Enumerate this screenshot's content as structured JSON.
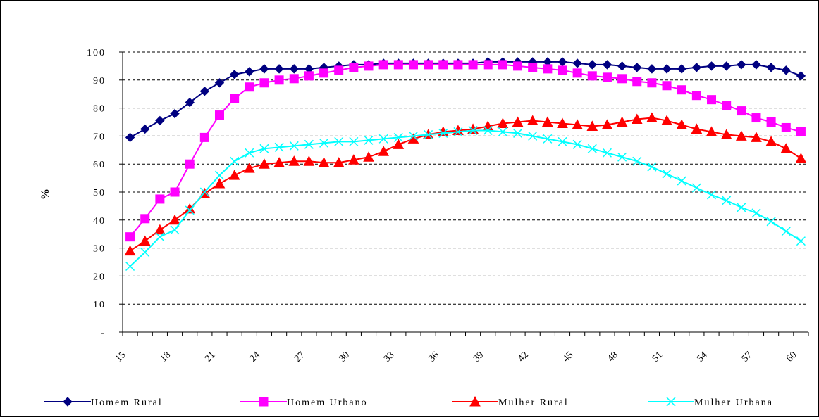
{
  "chart_data": {
    "type": "line",
    "title": "",
    "xlabel": "",
    "ylabel": "%",
    "xlim": [
      16,
      61
    ],
    "ylim": [
      0,
      100
    ],
    "grid": true,
    "legend_position": "bottom",
    "x_tick_labels": [
      "15",
      "18",
      "21",
      "24",
      "27",
      "30",
      "33",
      "36",
      "39",
      "42",
      "45",
      "48",
      "51",
      "54",
      "57",
      "60"
    ],
    "y_tick_labels": [
      "-",
      "10",
      "20",
      "30",
      "40",
      "50",
      "60",
      "70",
      "80",
      "90",
      "100"
    ],
    "x": [
      16,
      17,
      18,
      19,
      20,
      21,
      22,
      23,
      24,
      25,
      26,
      27,
      28,
      29,
      30,
      31,
      32,
      33,
      34,
      35,
      36,
      37,
      38,
      39,
      40,
      41,
      42,
      43,
      44,
      45,
      46,
      47,
      48,
      49,
      50,
      51,
      52,
      53,
      54,
      55,
      56,
      57,
      58,
      59,
      60,
      61
    ],
    "series": [
      {
        "name": "Homem Rural",
        "color": "#000080",
        "marker": "diamond",
        "values": [
          69.5,
          72.5,
          75.5,
          78,
          82,
          86,
          89,
          92,
          93,
          94,
          94,
          94,
          94,
          94.5,
          95,
          95.5,
          95.5,
          96,
          96,
          96,
          96,
          96,
          96,
          96,
          96.5,
          96.5,
          96.5,
          96.5,
          96.5,
          96.5,
          96,
          95.5,
          95.5,
          95,
          94.5,
          94,
          94,
          94,
          94.5,
          95,
          95,
          95.5,
          95.5,
          94.5,
          93.5,
          91.5
        ]
      },
      {
        "name": "Homem Urbano",
        "color": "#FF00FF",
        "marker": "square",
        "values": [
          34,
          40.5,
          47.5,
          50,
          60,
          69.5,
          77.5,
          83.5,
          87.5,
          89,
          90,
          90.5,
          91.5,
          92.5,
          93.5,
          94.5,
          95,
          95.5,
          95.5,
          95.5,
          95.5,
          95.5,
          95.5,
          95.5,
          95.5,
          95.5,
          95,
          94.5,
          94,
          93.5,
          92.5,
          91.5,
          91,
          90.5,
          89.5,
          89,
          88,
          86.5,
          84.5,
          83,
          81,
          79,
          76.5,
          75,
          73,
          71.5
        ]
      },
      {
        "name": "Mulher Rural",
        "color": "#FF0000",
        "marker": "triangle",
        "values": [
          29,
          32.5,
          36.5,
          40,
          44,
          49.5,
          53,
          56,
          58.5,
          60,
          60.5,
          61,
          61,
          60.5,
          60.5,
          61.5,
          62.5,
          64.5,
          67,
          69,
          70.5,
          71.5,
          72,
          72.5,
          73.5,
          74.5,
          75,
          75.5,
          75,
          74.5,
          74,
          73.5,
          74,
          75,
          76,
          76.5,
          75.5,
          74,
          72.5,
          71.5,
          70.5,
          70,
          69.5,
          68,
          65.5,
          62
        ]
      },
      {
        "name": "Mulher Urbana",
        "color": "#00FFFF",
        "marker": "x",
        "values": [
          23.5,
          28.5,
          34,
          36.5,
          43.5,
          50,
          56,
          61,
          64,
          65.5,
          66,
          66.5,
          67,
          67.5,
          68,
          68,
          68.5,
          69,
          69.5,
          70,
          70.5,
          71,
          71.5,
          72,
          72,
          71.5,
          71,
          70,
          69,
          68,
          67,
          65.5,
          64,
          62.5,
          61,
          59,
          56.5,
          54,
          51.5,
          49,
          47,
          44.5,
          42.5,
          39.5,
          36,
          32.5
        ]
      }
    ]
  }
}
